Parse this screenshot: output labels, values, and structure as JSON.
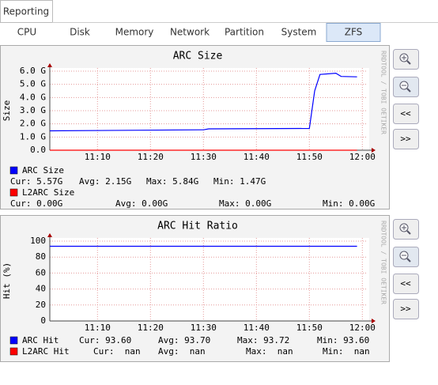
{
  "tabs": {
    "top": "Reporting",
    "items": [
      "CPU",
      "Disk",
      "Memory",
      "Network",
      "Partition",
      "System",
      "ZFS"
    ],
    "selected": "ZFS"
  },
  "nav": [
    "<<",
    ">>"
  ],
  "chart_data": [
    {
      "type": "line",
      "title": "ARC Size",
      "y_label": "Size",
      "watermark": "RRDTOOL / TOBI OETIKER",
      "x": [
        "11:01",
        "11:30",
        "11:31",
        "11:50",
        "11:51",
        "11:52",
        "11:55",
        "11:56",
        "11:59"
      ],
      "xlim": [
        "11:01",
        "12:01"
      ],
      "xticks": [
        "11:10",
        "11:20",
        "11:30",
        "11:40",
        "11:50",
        "12:00"
      ],
      "ylim": [
        0,
        6
      ],
      "yticks": [
        {
          "value": 0,
          "label": "0.0"
        },
        {
          "value": 1,
          "label": "1.0 G"
        },
        {
          "value": 2,
          "label": "2.0 G"
        },
        {
          "value": 3,
          "label": "3.0 G"
        },
        {
          "value": 4,
          "label": "4.0 G"
        },
        {
          "value": 5,
          "label": "5.0 G"
        },
        {
          "value": 6,
          "label": "6.0 G"
        }
      ],
      "grid": true,
      "series": [
        {
          "name": "ARC Size",
          "color": "#0000ff",
          "values": [
            1.47,
            1.55,
            1.62,
            1.65,
            4.5,
            5.75,
            5.84,
            5.6,
            5.57
          ],
          "stats": [
            "Cur: 5.57G",
            "Avg: 2.15G",
            "Max: 5.84G",
            "Min: 1.47G"
          ]
        },
        {
          "name": "L2ARC Size",
          "color": "#ff0000",
          "values": [
            0,
            0,
            0,
            0,
            0,
            0,
            0,
            0,
            0
          ],
          "stats": [
            "Cur: 0.00G",
            "Avg: 0.00G",
            "Max: 0.00G",
            "Min: 0.00G"
          ]
        }
      ]
    },
    {
      "type": "line",
      "title": "ARC Hit Ratio",
      "y_label": "Hit (%)",
      "watermark": "RRDTOOL / TOBI OETIKER",
      "x": [
        "11:01",
        "11:59"
      ],
      "xlim": [
        "11:01",
        "12:01"
      ],
      "xticks": [
        "11:10",
        "11:20",
        "11:30",
        "11:40",
        "11:50",
        "12:00"
      ],
      "ylim": [
        0,
        100
      ],
      "yticks": [
        0,
        20,
        40,
        60,
        80,
        100
      ],
      "grid": true,
      "series": [
        {
          "name": "ARC Hit",
          "color": "#0000ff",
          "values": [
            93.6,
            93.6
          ],
          "stats": [
            "Cur: 93.60",
            "Avg: 93.70",
            "Max: 93.72",
            "Min: 93.60"
          ]
        },
        {
          "name": "L2ARC Hit",
          "color": "#ff0000",
          "values": [
            null,
            null
          ],
          "stats": [
            "Cur:  nan",
            "Avg:  nan",
            "Max:  nan",
            "Min:  nan"
          ]
        }
      ]
    }
  ]
}
